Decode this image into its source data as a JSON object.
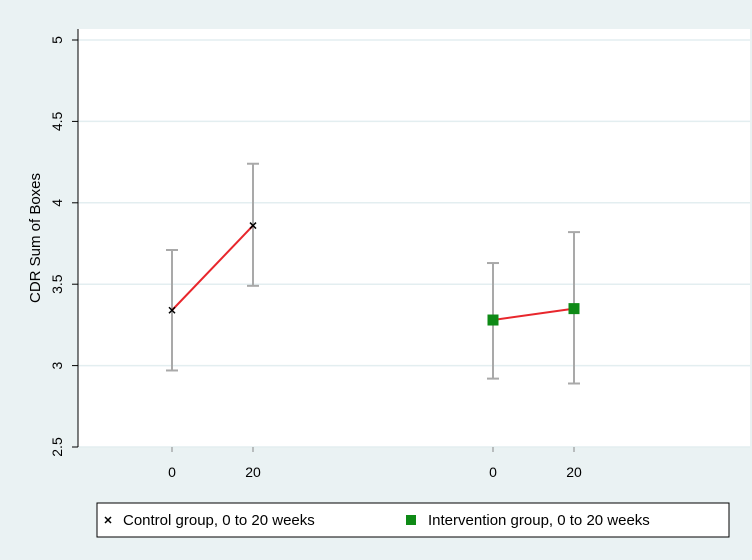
{
  "chart_data": {
    "type": "line",
    "title": "",
    "xlabel": "",
    "ylabel": "CDR Sum of Boxes",
    "ylim": [
      2.5,
      5
    ],
    "yticks": [
      "2.5",
      "3",
      "3.5",
      "4",
      "4.5",
      "5"
    ],
    "grid": true,
    "legend_position": "bottom",
    "series": [
      {
        "name": "Control group, 0 to 20 weeks",
        "marker": "x",
        "marker_color": "#000000",
        "line_color": "#e8262c",
        "x": [
          0,
          20
        ],
        "x_labels": [
          "0",
          "20"
        ],
        "y": [
          3.34,
          3.86
        ],
        "ci_low": [
          2.97,
          3.49
        ],
        "ci_high": [
          3.71,
          4.24
        ]
      },
      {
        "name": "Intervention group, 0 to 20 weeks",
        "marker": "square",
        "marker_color": "#0e8a16",
        "line_color": "#e8262c",
        "x": [
          0,
          20
        ],
        "x_labels": [
          "0",
          "20"
        ],
        "y": [
          3.28,
          3.35
        ],
        "ci_low": [
          2.92,
          2.89
        ],
        "ci_high": [
          3.63,
          3.82
        ]
      }
    ],
    "colors": {
      "background": "#eaf2f3",
      "plot_background": "#ffffff",
      "grid": "#e3eef0",
      "error_bar": "#a9a9a9",
      "connect_line": "#e8262c"
    }
  }
}
